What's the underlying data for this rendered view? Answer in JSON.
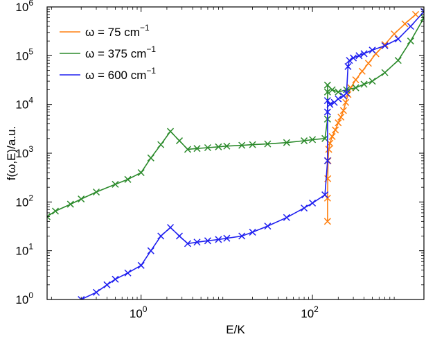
{
  "chart_data": {
    "type": "line",
    "xlabel": "E/K",
    "ylabel": "f(ω,E)/a.u.",
    "x_scale": "log",
    "y_scale": "log",
    "xlim": [
      0.08,
      2000
    ],
    "ylim": [
      1,
      1000000
    ],
    "x_ticks": [
      {
        "base": "10",
        "exp": "0",
        "value": 1
      },
      {
        "base": "10",
        "exp": "2",
        "value": 100
      }
    ],
    "y_ticks": [
      {
        "base": "10",
        "exp": "0",
        "value": 1
      },
      {
        "base": "10",
        "exp": "1",
        "value": 10
      },
      {
        "base": "10",
        "exp": "2",
        "value": 100
      },
      {
        "base": "10",
        "exp": "3",
        "value": 1000
      },
      {
        "base": "10",
        "exp": "4",
        "value": 10000
      },
      {
        "base": "10",
        "exp": "5",
        "value": 100000
      },
      {
        "base": "10",
        "exp": "6",
        "value": 1000000
      }
    ],
    "grid": false,
    "legend_position": "top-left",
    "marker": "x",
    "series": [
      {
        "name": "ω = 75 cm",
        "name_sup": "−1",
        "color": "#ff7f0e",
        "x": [
          150,
          150,
          151,
          152,
          155,
          160,
          170,
          185,
          200,
          215,
          230,
          245,
          260,
          280,
          320,
          380,
          450,
          550,
          700,
          900,
          1200,
          1600
        ],
        "y": [
          40,
          120,
          300,
          700,
          1200,
          1600,
          2200,
          3000,
          4200,
          5500,
          7500,
          11000,
          16000,
          22000,
          32000,
          48000,
          70000,
          110000,
          170000,
          280000,
          450000,
          700000
        ]
      },
      {
        "name": "ω = 375 cm",
        "name_sup": "−1",
        "color": "#2b8a2b",
        "x": [
          0.08,
          0.1,
          0.15,
          0.2,
          0.3,
          0.5,
          0.7,
          1.0,
          1.3,
          1.7,
          2.2,
          2.8,
          3.5,
          4.5,
          6,
          8,
          10,
          15,
          20,
          30,
          50,
          80,
          100,
          140,
          150,
          150,
          150,
          170,
          200,
          250,
          320,
          400,
          500,
          700,
          1000,
          1400,
          2000
        ],
        "y": [
          50,
          65,
          90,
          115,
          160,
          230,
          290,
          400,
          800,
          1500,
          2800,
          1800,
          1200,
          1250,
          1300,
          1350,
          1400,
          1450,
          1500,
          1550,
          1650,
          1800,
          1900,
          2000,
          5000,
          18000,
          25000,
          20000,
          18000,
          20000,
          22000,
          26000,
          30000,
          45000,
          80000,
          200000,
          600000
        ]
      },
      {
        "name": "ω = 600 cm",
        "name_sup": "−1",
        "color": "#1f1ff0",
        "x": [
          0.2,
          0.3,
          0.4,
          0.5,
          0.7,
          1.0,
          1.3,
          1.7,
          2.2,
          2.8,
          3.5,
          4.5,
          6,
          8,
          10,
          15,
          20,
          30,
          50,
          80,
          100,
          140,
          150,
          150,
          150,
          160,
          180,
          200,
          230,
          250,
          260,
          270,
          300,
          350,
          400,
          500,
          700,
          1000,
          1400,
          2000
        ],
        "y": [
          1,
          1.4,
          2,
          2.6,
          3.5,
          5,
          10,
          20,
          30,
          20,
          14,
          15,
          16,
          17,
          18,
          20,
          24,
          32,
          48,
          75,
          95,
          140,
          700,
          7000,
          12000,
          10000,
          11000,
          13000,
          15000,
          17000,
          60000,
          80000,
          90000,
          100000,
          110000,
          130000,
          160000,
          220000,
          400000,
          800000
        ]
      }
    ]
  }
}
